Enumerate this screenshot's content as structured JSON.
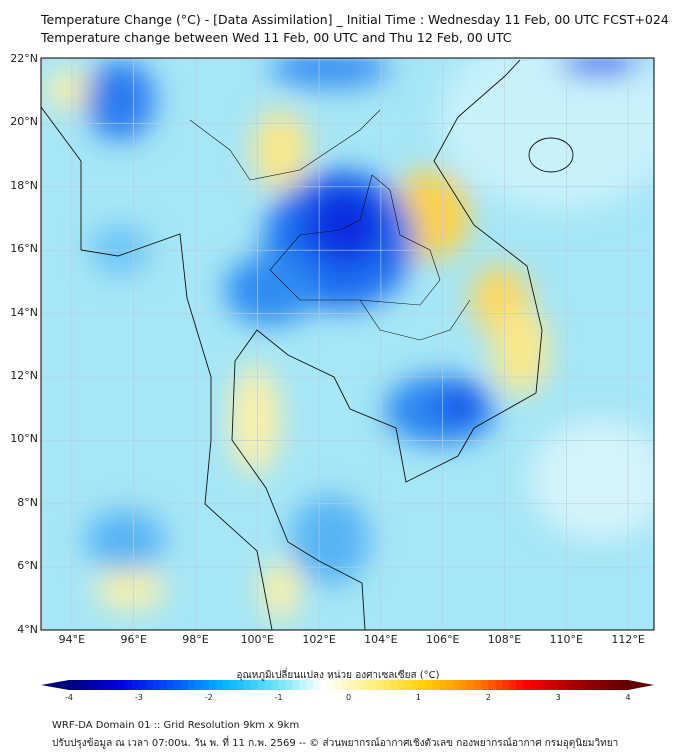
{
  "title_line1": "Temperature Change (°C) - [Data Assimilation] _ Initial Time : Wednesday 11 Feb, 00 UTC FCST+024",
  "title_line2": "Temperature change between Wed 11 Feb, 00 UTC and Thu 12 Feb, 00 UTC",
  "lat_labels": [
    "22°N",
    "20°N",
    "18°N",
    "16°N",
    "14°N",
    "12°N",
    "10°N",
    "8°N",
    "6°N",
    "4°N"
  ],
  "lat_values": [
    22,
    20,
    18,
    16,
    14,
    12,
    10,
    8,
    6,
    4
  ],
  "lon_labels": [
    "94°E",
    "96°E",
    "98°E",
    "100°E",
    "102°E",
    "104°E",
    "106°E",
    "108°E",
    "110°E",
    "112°E"
  ],
  "lon_values": [
    94,
    96,
    98,
    100,
    102,
    104,
    106,
    108,
    110,
    112
  ],
  "colorbar": {
    "label": "อุณหภูมิเปลี่ยนแปลง หน่วย องศาเซลเซียส (°C)",
    "ticks": [
      "-4",
      "-3",
      "-2",
      "-1",
      "0",
      "1",
      "2",
      "3",
      "4"
    ],
    "range": [
      -4,
      4
    ],
    "colors": [
      "#00007f",
      "#0000e0",
      "#0050ff",
      "#00b0ff",
      "#60e0f8",
      "#ffffff",
      "#fff080",
      "#ffd000",
      "#ff8000",
      "#ff0000",
      "#a00000",
      "#600000"
    ]
  },
  "footer_line1": "WRF-DA Domain 01 :: Grid Resolution 9km x 9km",
  "footer_line2": "ปรับปรุงข้อมูล ณ เวลา 07:00น. วัน พ. ที่ 11 ก.พ. 2569 -- © ส่วนพยากรณ์อากาศเชิงตัวเลข กองพยากรณ์อากาศ กรมอุตุนิยมวิทยา"
}
